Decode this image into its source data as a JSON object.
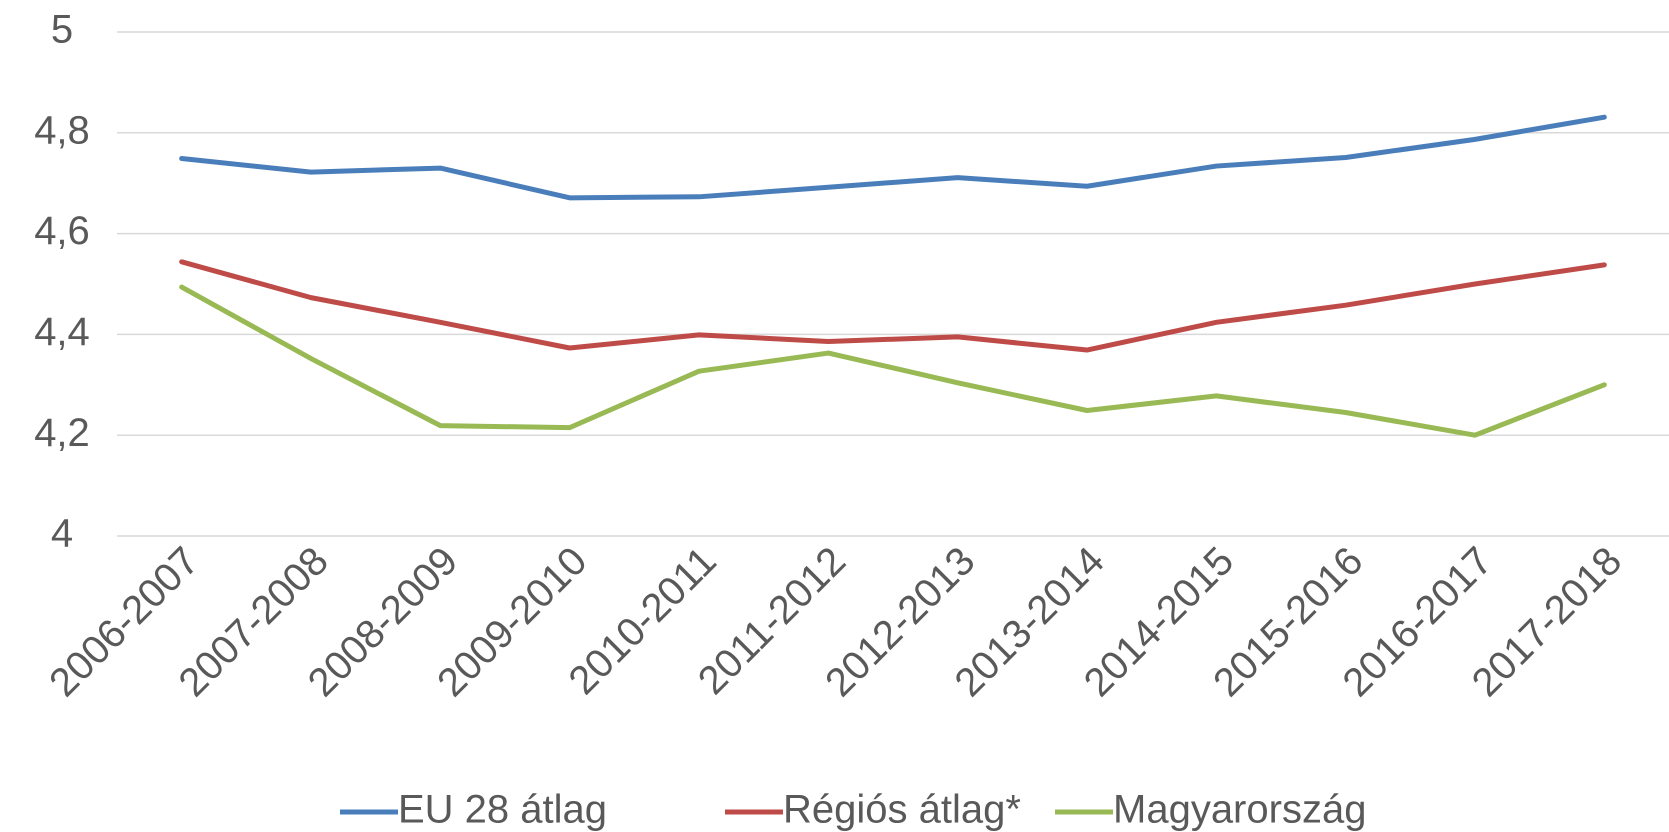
{
  "chart_data": {
    "type": "line",
    "categories": [
      "2006-2007",
      "2007-2008",
      "2008-2009",
      "2009-2010",
      "2010-2011",
      "2011-2012",
      "2012-2013",
      "2013-2014",
      "2014-2015",
      "2015-2016",
      "2016-2017",
      "2017-2018"
    ],
    "series": [
      {
        "name": "EU 28 átlag",
        "color": "#4a7ebb",
        "values": [
          4.749,
          4.722,
          4.73,
          4.671,
          4.673,
          4.692,
          4.711,
          4.694,
          4.734,
          4.751,
          4.787,
          4.831
        ]
      },
      {
        "name": "Régiós átlag*",
        "color": "#be4b48",
        "values": [
          4.544,
          4.473,
          4.424,
          4.373,
          4.399,
          4.386,
          4.395,
          4.369,
          4.424,
          4.458,
          4.5,
          4.538
        ]
      },
      {
        "name": "Magyarország",
        "color": "#98b954",
        "values": [
          4.494,
          4.352,
          4.219,
          4.215,
          4.327,
          4.363,
          4.304,
          4.249,
          4.278,
          4.245,
          4.2,
          4.3
        ]
      }
    ],
    "ylim": [
      4,
      5
    ],
    "yticks": [
      4,
      {
        "value": 4.2,
        "label": "4,2"
      },
      {
        "value": 4.4,
        "label": "4,4"
      },
      {
        "value": 4.6,
        "label": "4,6"
      },
      {
        "value": 4.8,
        "label": "4,8"
      },
      5
    ],
    "grid": true,
    "legend": "bottom"
  }
}
